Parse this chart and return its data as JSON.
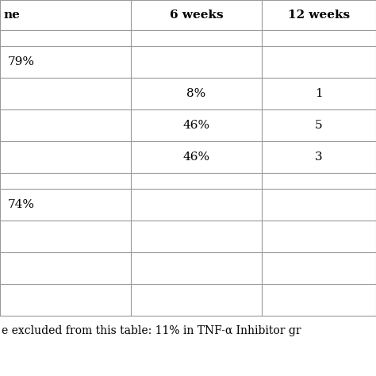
{
  "header_row": [
    "ne",
    "6 weeks",
    "12 weeks"
  ],
  "section1_rows": [
    [
      "79%",
      "",
      ""
    ],
    [
      "",
      "8%",
      "1"
    ],
    [
      "",
      "46%",
      "5"
    ],
    [
      "",
      "46%",
      "3"
    ]
  ],
  "section2_rows": [
    [
      "74%",
      "",
      ""
    ],
    [
      "",
      "",
      ""
    ],
    [
      "",
      "",
      ""
    ],
    [
      "",
      "",
      ""
    ]
  ],
  "footer_text": "e excluded from this table: 11% in TNF-α Inhibitor gr",
  "bg_color": "#ffffff",
  "line_color": "#999999",
  "text_color": "#000000",
  "header_font_size": 11,
  "cell_font_size": 11,
  "footer_font_size": 10
}
